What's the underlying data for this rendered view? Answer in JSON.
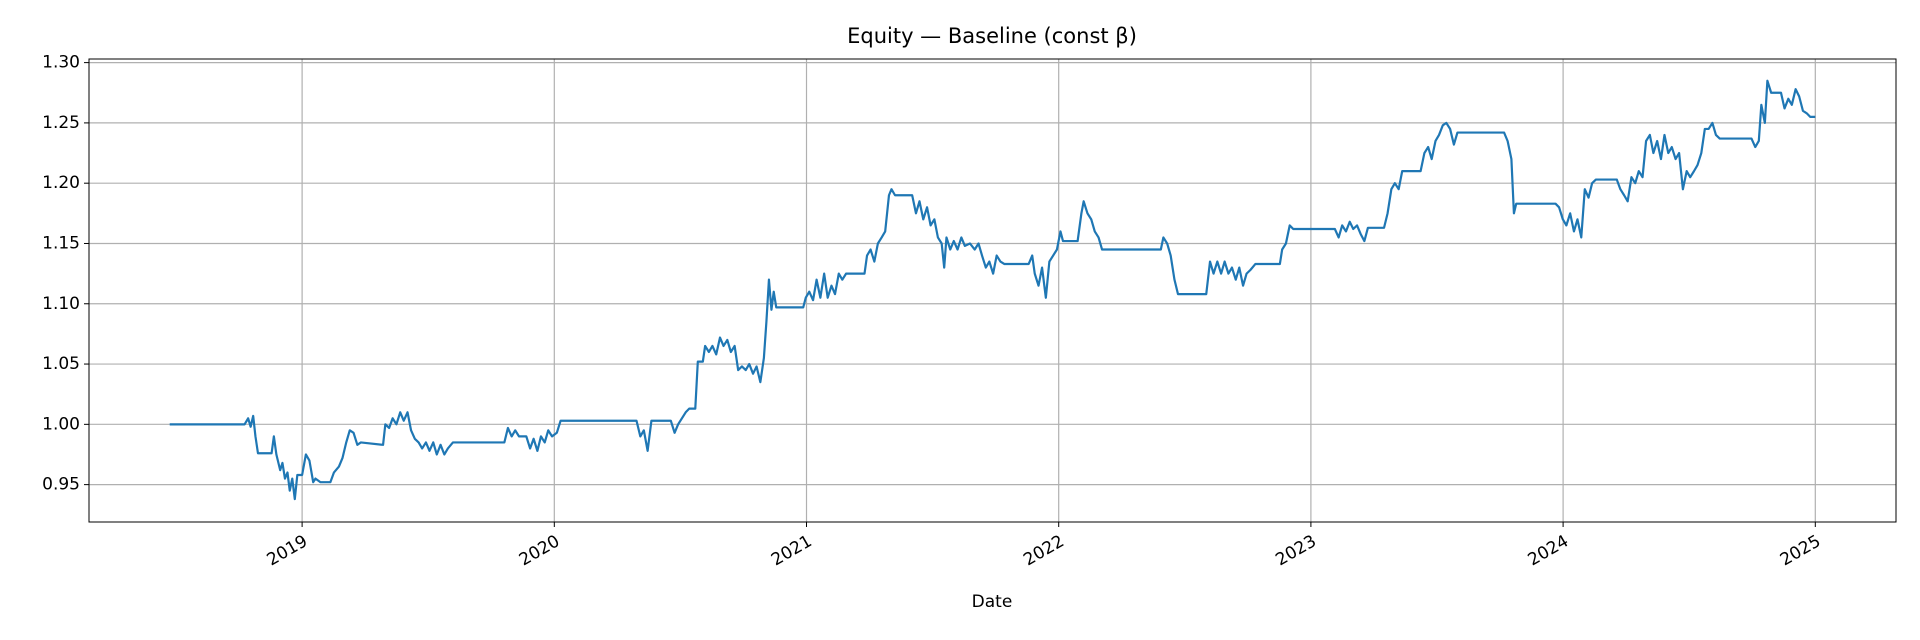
{
  "chart_data": {
    "type": "line",
    "title": "Equity — Baseline (const β)",
    "xlabel": "Date",
    "color": "#1f77b4",
    "grid": true,
    "xlim": [
      2018.155,
      2025.32
    ],
    "xticks": [
      2019,
      2020,
      2021,
      2022,
      2023,
      2024,
      2025
    ],
    "ylim": [
      0.919,
      1.303
    ],
    "yticks": [
      {
        "value": 0.95,
        "label": "0.95"
      },
      {
        "value": 1.0,
        "label": "1.00"
      },
      {
        "value": 1.05,
        "label": "1.05"
      },
      {
        "value": 1.1,
        "label": "1.10"
      },
      {
        "value": 1.15,
        "label": "1.15"
      },
      {
        "value": 1.2,
        "label": "1.20"
      },
      {
        "value": 1.25,
        "label": "1.25"
      },
      {
        "value": 1.3,
        "label": "1.30"
      }
    ],
    "x": [
      2018.475,
      2018.772,
      2018.786,
      2018.796,
      2018.806,
      2018.815,
      2018.825,
      2018.879,
      2018.888,
      2018.898,
      2018.913,
      2018.922,
      2018.932,
      2018.942,
      2018.951,
      2018.961,
      2018.971,
      2018.981,
      2019.0,
      2019.015,
      2019.029,
      2019.044,
      2019.053,
      2019.073,
      2019.112,
      2019.126,
      2019.146,
      2019.16,
      2019.175,
      2019.189,
      2019.204,
      2019.219,
      2019.233,
      2019.321,
      2019.33,
      2019.345,
      2019.359,
      2019.374,
      2019.389,
      2019.403,
      2019.418,
      2019.432,
      2019.447,
      2019.462,
      2019.476,
      2019.491,
      2019.505,
      2019.52,
      2019.534,
      2019.549,
      2019.564,
      2019.578,
      2019.598,
      2019.802,
      2019.816,
      2019.831,
      2019.845,
      2019.86,
      2019.889,
      2019.904,
      2019.918,
      2019.933,
      2019.947,
      2019.962,
      2019.976,
      2019.991,
      2020.01,
      2020.025,
      2020.326,
      2020.341,
      2020.355,
      2020.37,
      2020.385,
      2020.462,
      2020.477,
      2020.491,
      2020.506,
      2020.521,
      2020.535,
      2020.559,
      2020.569,
      2020.589,
      2020.598,
      2020.613,
      2020.627,
      2020.642,
      2020.657,
      2020.671,
      2020.686,
      2020.7,
      2020.715,
      2020.729,
      2020.744,
      2020.759,
      2020.773,
      2020.788,
      2020.802,
      2020.817,
      2020.831,
      2020.841,
      2020.851,
      2020.861,
      2020.87,
      2020.88,
      2020.987,
      2020.997,
      2021.011,
      2021.026,
      2021.04,
      2021.055,
      2021.07,
      2021.084,
      2021.099,
      2021.113,
      2021.128,
      2021.142,
      2021.157,
      2021.23,
      2021.24,
      2021.254,
      2021.269,
      2021.283,
      2021.298,
      2021.312,
      2021.327,
      2021.337,
      2021.351,
      2021.419,
      2021.434,
      2021.448,
      2021.463,
      2021.478,
      2021.492,
      2021.507,
      2021.521,
      2021.536,
      2021.546,
      2021.555,
      2021.57,
      2021.584,
      2021.599,
      2021.614,
      2021.628,
      2021.648,
      2021.667,
      2021.682,
      2021.696,
      2021.711,
      2021.725,
      2021.74,
      2021.754,
      2021.769,
      2021.784,
      2021.881,
      2021.895,
      2021.905,
      2021.92,
      2021.934,
      2021.949,
      2021.963,
      2021.978,
      2021.993,
      2022.007,
      2022.017,
      2022.075,
      2022.09,
      2022.099,
      2022.114,
      2022.129,
      2022.143,
      2022.158,
      2022.172,
      2022.187,
      2022.405,
      2022.415,
      2022.43,
      2022.444,
      2022.459,
      2022.473,
      2022.585,
      2022.6,
      2022.614,
      2022.629,
      2022.644,
      2022.658,
      2022.673,
      2022.687,
      2022.702,
      2022.716,
      2022.731,
      2022.745,
      2022.76,
      2022.78,
      2022.877,
      2022.886,
      2022.901,
      2022.916,
      2022.93,
      2023.095,
      2023.11,
      2023.124,
      2023.139,
      2023.154,
      2023.168,
      2023.183,
      2023.197,
      2023.212,
      2023.226,
      2023.29,
      2023.304,
      2023.319,
      2023.333,
      2023.348,
      2023.362,
      2023.435,
      2023.45,
      2023.465,
      2023.479,
      2023.494,
      2023.508,
      2023.523,
      2023.537,
      2023.552,
      2023.567,
      2023.581,
      2023.766,
      2023.78,
      2023.795,
      2023.805,
      2023.814,
      2023.97,
      2023.984,
      2023.999,
      2024.013,
      2024.028,
      2024.043,
      2024.057,
      2024.072,
      2024.086,
      2024.101,
      2024.115,
      2024.13,
      2024.213,
      2024.227,
      2024.242,
      2024.256,
      2024.271,
      2024.286,
      2024.3,
      2024.315,
      2024.329,
      2024.344,
      2024.358,
      2024.373,
      2024.388,
      2024.402,
      2024.417,
      2024.431,
      2024.446,
      2024.46,
      2024.475,
      2024.49,
      2024.504,
      2024.519,
      2024.533,
      2024.548,
      2024.562,
      2024.577,
      2024.592,
      2024.606,
      2024.621,
      2024.747,
      2024.762,
      2024.776,
      2024.786,
      2024.8,
      2024.81,
      2024.825,
      2024.864,
      2024.878,
      2024.893,
      2024.907,
      2024.922,
      2024.936,
      2024.951,
      2024.966,
      2024.98,
      2025.0
    ],
    "values": [
      1.0,
      1.0,
      1.005,
      0.998,
      1.007,
      0.99,
      0.976,
      0.976,
      0.99,
      0.975,
      0.962,
      0.968,
      0.955,
      0.96,
      0.945,
      0.955,
      0.938,
      0.958,
      0.958,
      0.975,
      0.97,
      0.952,
      0.955,
      0.952,
      0.952,
      0.96,
      0.965,
      0.972,
      0.985,
      0.995,
      0.993,
      0.983,
      0.985,
      0.983,
      1.0,
      0.997,
      1.005,
      1.0,
      1.01,
      1.003,
      1.01,
      0.995,
      0.988,
      0.985,
      0.98,
      0.985,
      0.978,
      0.985,
      0.975,
      0.983,
      0.975,
      0.98,
      0.985,
      0.985,
      0.997,
      0.99,
      0.995,
      0.99,
      0.99,
      0.98,
      0.988,
      0.978,
      0.99,
      0.985,
      0.995,
      0.99,
      0.993,
      1.003,
      1.003,
      0.99,
      0.995,
      0.978,
      1.003,
      1.003,
      0.993,
      1.0,
      1.005,
      1.01,
      1.013,
      1.013,
      1.052,
      1.052,
      1.065,
      1.06,
      1.065,
      1.058,
      1.072,
      1.065,
      1.07,
      1.06,
      1.065,
      1.045,
      1.048,
      1.045,
      1.05,
      1.042,
      1.048,
      1.035,
      1.055,
      1.085,
      1.12,
      1.095,
      1.11,
      1.097,
      1.097,
      1.105,
      1.11,
      1.103,
      1.12,
      1.105,
      1.125,
      1.105,
      1.115,
      1.108,
      1.125,
      1.12,
      1.125,
      1.125,
      1.14,
      1.145,
      1.135,
      1.15,
      1.155,
      1.16,
      1.19,
      1.195,
      1.19,
      1.19,
      1.175,
      1.185,
      1.17,
      1.18,
      1.165,
      1.17,
      1.155,
      1.15,
      1.13,
      1.155,
      1.145,
      1.152,
      1.145,
      1.155,
      1.148,
      1.15,
      1.145,
      1.15,
      1.14,
      1.13,
      1.135,
      1.125,
      1.14,
      1.135,
      1.133,
      1.133,
      1.14,
      1.125,
      1.115,
      1.13,
      1.105,
      1.135,
      1.14,
      1.145,
      1.16,
      1.152,
      1.152,
      1.175,
      1.185,
      1.175,
      1.17,
      1.16,
      1.155,
      1.145,
      1.145,
      1.145,
      1.155,
      1.15,
      1.14,
      1.12,
      1.108,
      1.108,
      1.135,
      1.125,
      1.135,
      1.125,
      1.135,
      1.125,
      1.13,
      1.12,
      1.13,
      1.115,
      1.125,
      1.128,
      1.133,
      1.133,
      1.145,
      1.15,
      1.165,
      1.162,
      1.162,
      1.155,
      1.165,
      1.16,
      1.168,
      1.162,
      1.165,
      1.158,
      1.152,
      1.163,
      1.163,
      1.175,
      1.195,
      1.2,
      1.195,
      1.21,
      1.21,
      1.225,
      1.23,
      1.22,
      1.235,
      1.24,
      1.248,
      1.25,
      1.245,
      1.232,
      1.242,
      1.242,
      1.235,
      1.22,
      1.175,
      1.183,
      1.183,
      1.18,
      1.17,
      1.165,
      1.175,
      1.16,
      1.17,
      1.155,
      1.195,
      1.188,
      1.2,
      1.203,
      1.203,
      1.195,
      1.19,
      1.185,
      1.205,
      1.2,
      1.21,
      1.205,
      1.235,
      1.24,
      1.225,
      1.235,
      1.22,
      1.24,
      1.225,
      1.23,
      1.22,
      1.225,
      1.195,
      1.21,
      1.205,
      1.21,
      1.215,
      1.225,
      1.245,
      1.245,
      1.25,
      1.24,
      1.237,
      1.237,
      1.23,
      1.235,
      1.265,
      1.25,
      1.285,
      1.275,
      1.275,
      1.262,
      1.27,
      1.265,
      1.278,
      1.272,
      1.26,
      1.258,
      1.255,
      1.255
    ]
  }
}
